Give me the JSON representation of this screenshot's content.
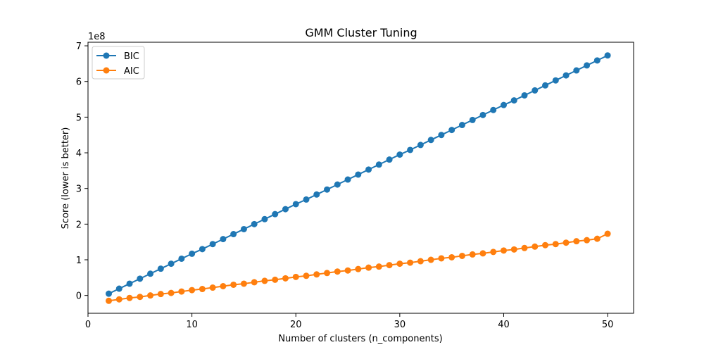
{
  "chart_data": {
    "type": "line",
    "title": "GMM Cluster Tuning",
    "xlabel": "Number of clusters (n_components)",
    "ylabel": "Score (lower is better)",
    "y_offset_label": "1e8",
    "xlim": [
      0,
      52.5
    ],
    "ylim": [
      -0.5,
      7.1
    ],
    "x_ticks": [
      0,
      10,
      20,
      30,
      40,
      50
    ],
    "y_ticks": [
      0,
      1,
      2,
      3,
      4,
      5,
      6,
      7
    ],
    "grid": false,
    "legend_position": "upper-left",
    "x": [
      2,
      3,
      4,
      5,
      6,
      7,
      8,
      9,
      10,
      11,
      12,
      13,
      14,
      15,
      16,
      17,
      18,
      19,
      20,
      21,
      22,
      23,
      24,
      25,
      26,
      27,
      28,
      29,
      30,
      31,
      32,
      33,
      34,
      35,
      36,
      37,
      38,
      39,
      40,
      41,
      42,
      43,
      44,
      45,
      46,
      47,
      48,
      49,
      50
    ],
    "series": [
      {
        "name": "BIC",
        "color": "#1f77b4",
        "values": [
          0.05,
          0.19,
          0.33,
          0.47,
          0.61,
          0.75,
          0.89,
          1.03,
          1.17,
          1.3,
          1.44,
          1.58,
          1.72,
          1.86,
          2.0,
          2.14,
          2.28,
          2.42,
          2.56,
          2.69,
          2.83,
          2.97,
          3.11,
          3.25,
          3.39,
          3.53,
          3.67,
          3.81,
          3.95,
          4.08,
          4.22,
          4.36,
          4.5,
          4.64,
          4.78,
          4.92,
          5.06,
          5.2,
          5.34,
          5.47,
          5.61,
          5.75,
          5.89,
          6.03,
          6.17,
          6.31,
          6.45,
          6.59,
          6.73
        ]
      },
      {
        "name": "AIC",
        "color": "#ff7f0e",
        "values": [
          -0.15,
          -0.11,
          -0.07,
          -0.04,
          0.0,
          0.04,
          0.07,
          0.11,
          0.15,
          0.18,
          0.22,
          0.26,
          0.3,
          0.33,
          0.37,
          0.41,
          0.44,
          0.48,
          0.52,
          0.55,
          0.59,
          0.63,
          0.67,
          0.7,
          0.74,
          0.78,
          0.81,
          0.85,
          0.89,
          0.92,
          0.96,
          1.0,
          1.04,
          1.07,
          1.11,
          1.15,
          1.18,
          1.22,
          1.26,
          1.29,
          1.33,
          1.37,
          1.41,
          1.44,
          1.48,
          1.52,
          1.55,
          1.59,
          1.73
        ]
      }
    ]
  }
}
